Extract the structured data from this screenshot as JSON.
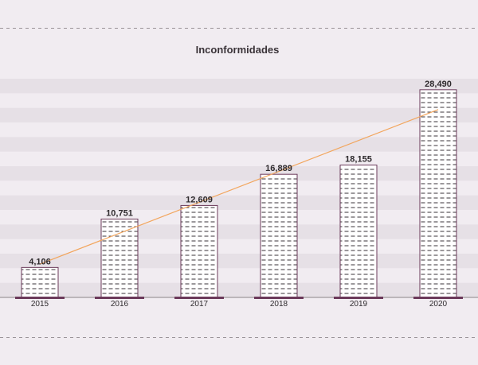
{
  "chart_data": {
    "type": "bar",
    "title": "Inconformidades",
    "categories": [
      "2015",
      "2016",
      "2017",
      "2018",
      "2019",
      "2020"
    ],
    "values": [
      4106,
      10751,
      12609,
      16889,
      18155,
      28490
    ],
    "data_labels": [
      "4,106",
      "10,751",
      "12,609",
      "16,889",
      "18,155",
      "28,490"
    ],
    "ylim": [
      0,
      30000
    ],
    "trendline": true,
    "grid": "horizontal bands",
    "legend": "none",
    "colors": {
      "background": "#f1ecf1",
      "band": "#e6e0e6",
      "bar_outline": "#6b3a5a",
      "bar_pattern": "#3a3338",
      "baseline_accent": "#6b3a5a",
      "trendline": "#f2a55c",
      "dashed_rule": "#9a9398"
    }
  }
}
